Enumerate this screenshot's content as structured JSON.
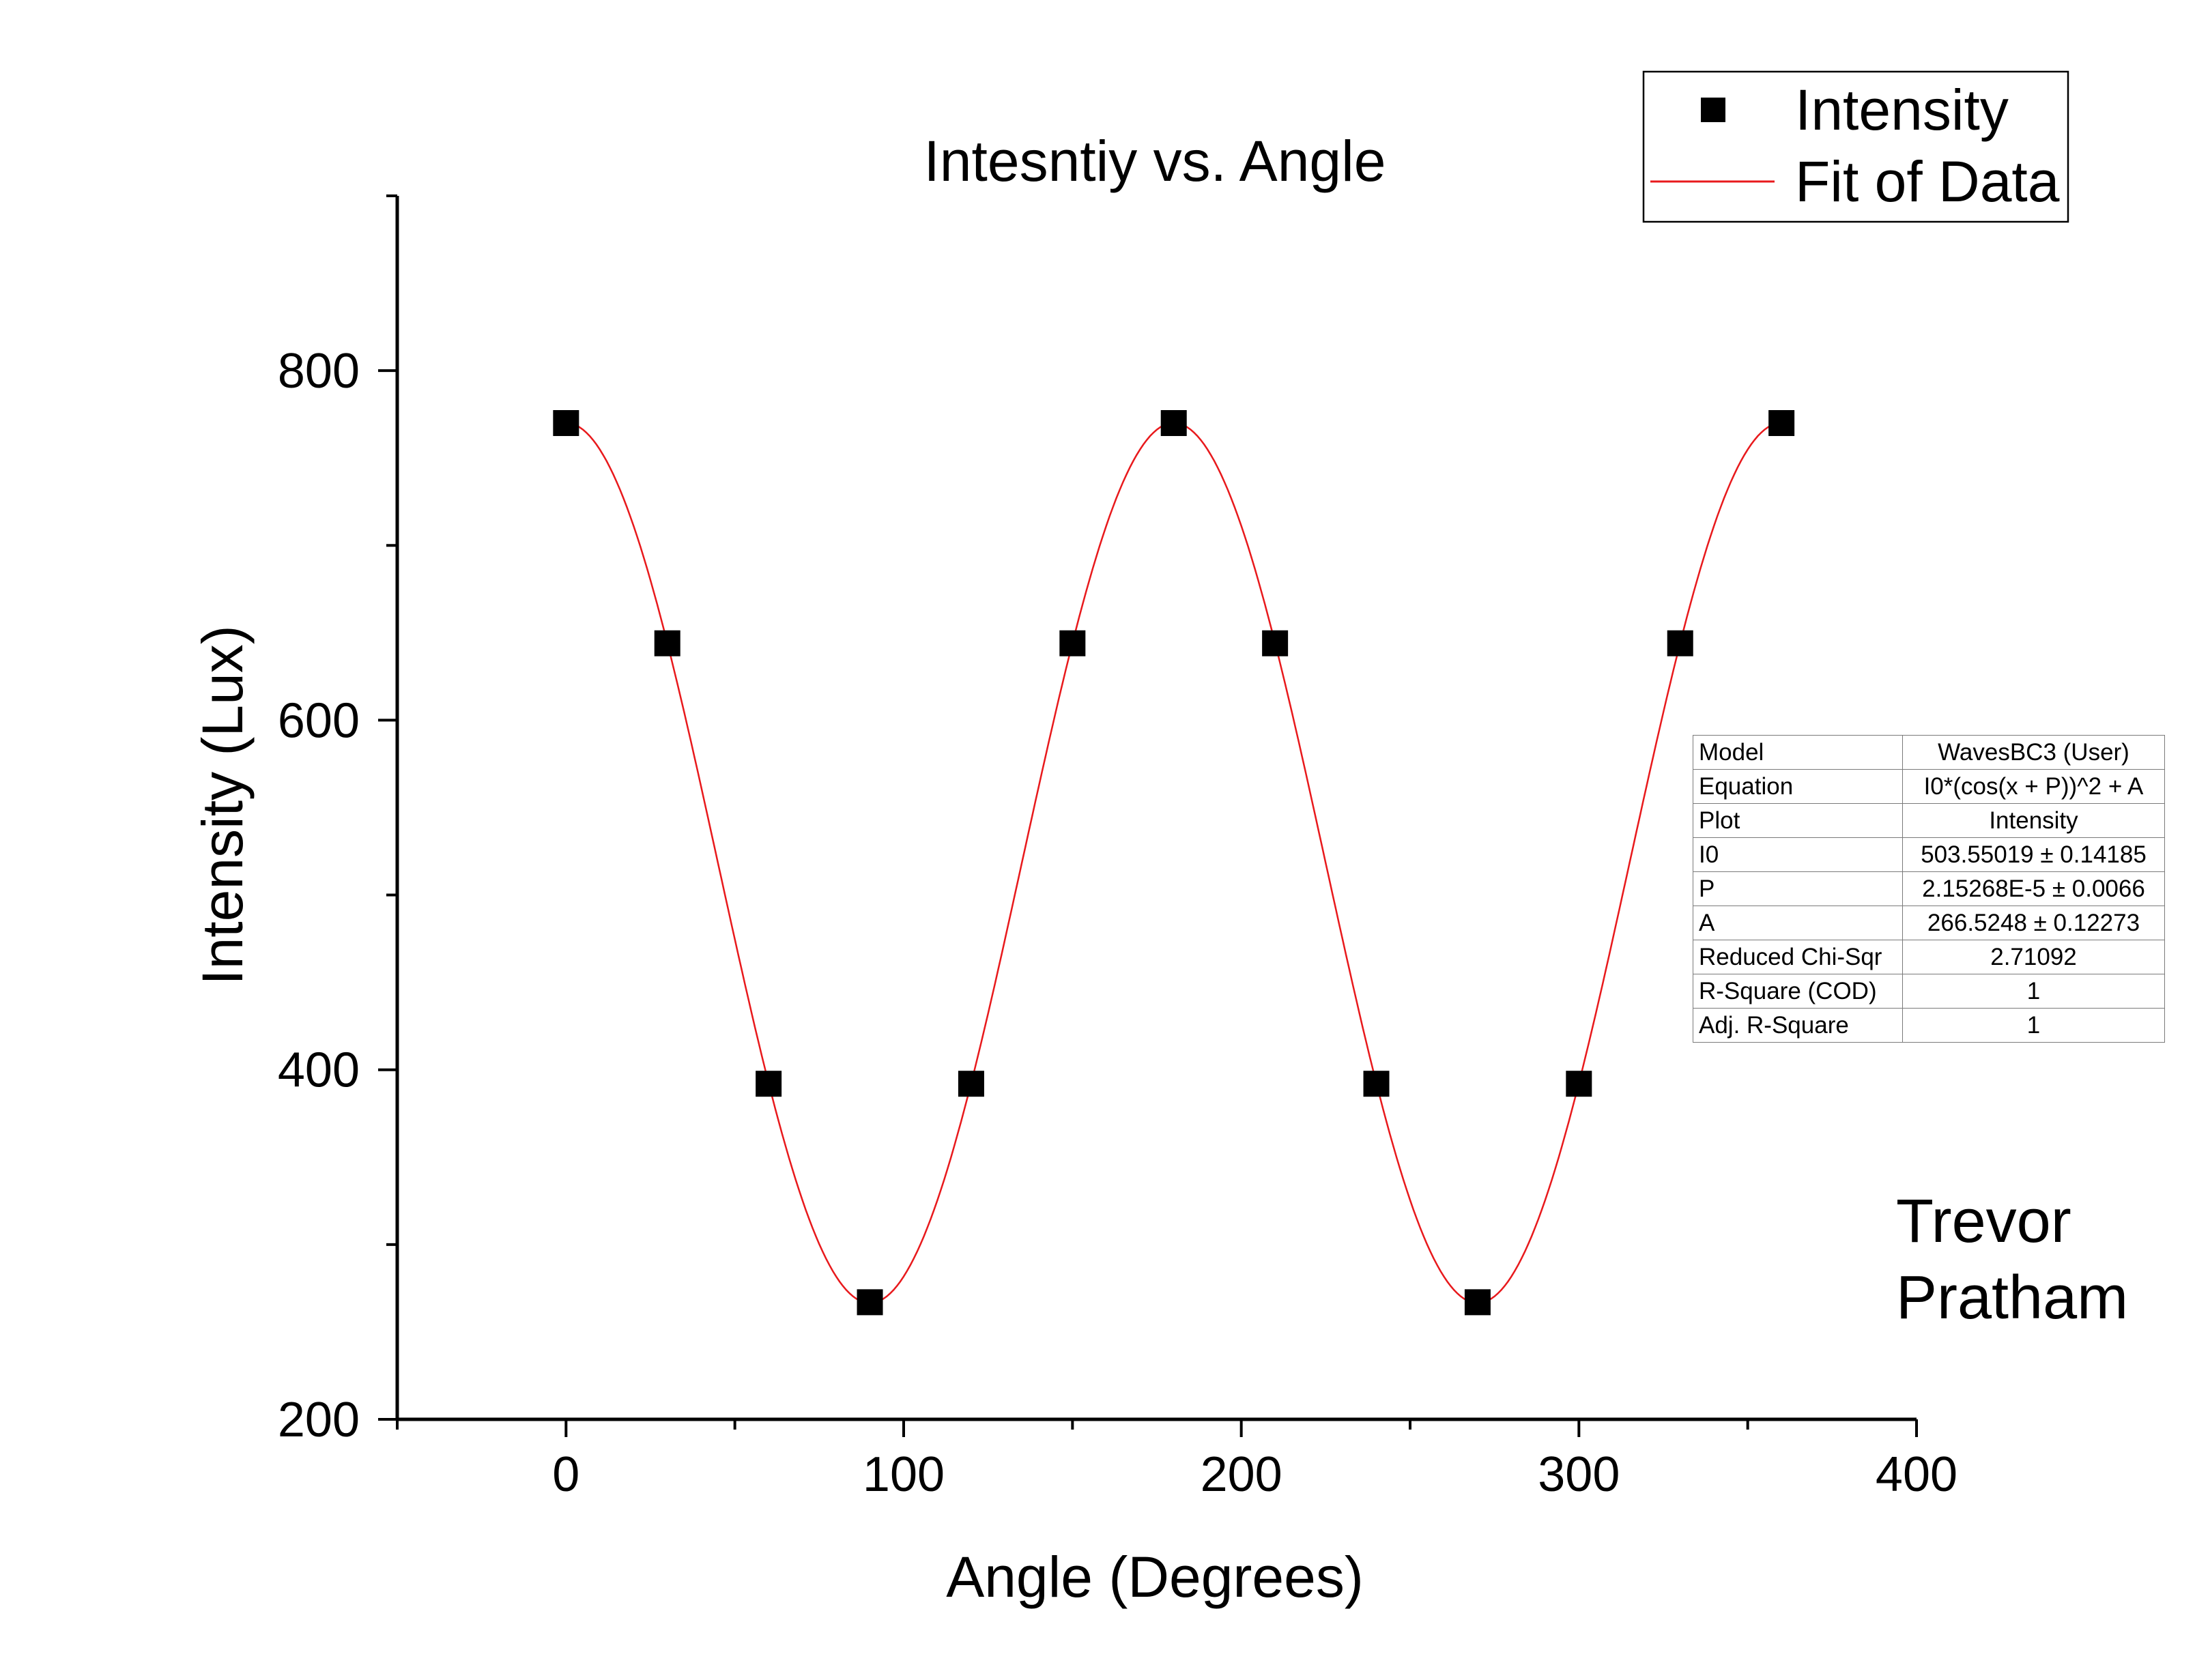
{
  "chart_data": {
    "type": "scatter",
    "title": "Intesntiy vs. Angle",
    "xlabel": "Angle (Degrees)",
    "ylabel": "Intensity (Lux)",
    "xlim": [
      -50,
      400
    ],
    "ylim": [
      200,
      900
    ],
    "xticks": [
      0,
      100,
      200,
      300,
      400
    ],
    "yticks": [
      200,
      400,
      600,
      800
    ],
    "series": [
      {
        "name": "Intensity",
        "marker": "square",
        "color": "#000000",
        "x": [
          0,
          30,
          60,
          90,
          120,
          150,
          180,
          210,
          240,
          270,
          300,
          330,
          360
        ],
        "y": [
          770,
          644,
          392,
          267,
          392,
          644,
          770,
          644,
          392,
          267,
          392,
          644,
          770
        ]
      },
      {
        "name": "Fit of Data",
        "style": "line",
        "color": "#e8191c",
        "model": {
          "I0": 503.55019,
          "P": 2.15268e-05,
          "A": 266.5248
        },
        "x_range": [
          0,
          360
        ]
      }
    ],
    "legend": {
      "placement": "top-right"
    }
  },
  "fit_table": [
    {
      "key": "Model",
      "value": "WavesBC3 (User)"
    },
    {
      "key": "Equation",
      "value": "I0*(cos(x + P))^2 + A"
    },
    {
      "key": "Plot",
      "value": "Intensity"
    },
    {
      "key": "I0",
      "value": "503.55019 ± 0.14185"
    },
    {
      "key": "P",
      "value": "2.15268E-5 ± 0.0066"
    },
    {
      "key": "A",
      "value": "266.5248 ± 0.12273"
    },
    {
      "key": "Reduced Chi-Sqr",
      "value": "2.71092"
    },
    {
      "key": "R-Square (COD)",
      "value": "1"
    },
    {
      "key": "Adj. R-Square",
      "value": "1"
    }
  ],
  "author": {
    "line1": "Trevor",
    "line2": "Pratham"
  }
}
